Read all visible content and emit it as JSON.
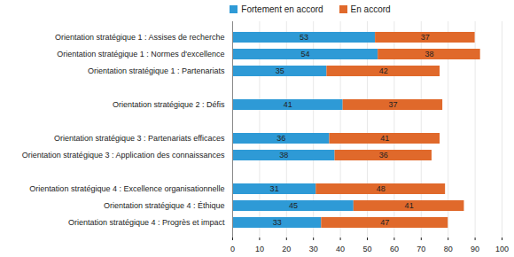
{
  "chart_data": {
    "type": "bar",
    "orientation": "horizontal",
    "stacked": true,
    "data_labels": true,
    "grid": true,
    "legend": "top",
    "categories": [
      "Orientation stratégique 1 : Assises de recherche",
      "Orientation stratégique 1 : Normes d'excellence",
      "Orientation stratégique 1 : Partenariats",
      null,
      "Orientation stratégique 2 : Défis",
      null,
      "Orientation stratégique 3 : Partenariats efficaces",
      "Orientation stratégique 3 : Application des connaissances",
      null,
      "Orientation stratégique 4 : Excellence organisationnelle",
      "Orientation stratégique 4 : Éthique",
      "Orientation stratégique 4 : Progrès et impact"
    ],
    "series": [
      {
        "name": "Fortement en accord",
        "color": "#2e9ad6",
        "values": [
          53,
          54,
          35,
          null,
          41,
          null,
          36,
          38,
          null,
          31,
          45,
          33
        ]
      },
      {
        "name": "En accord",
        "color": "#e0692b",
        "values": [
          37,
          38,
          42,
          null,
          37,
          null,
          41,
          36,
          null,
          48,
          41,
          47
        ]
      }
    ],
    "xlim": [
      0,
      100
    ],
    "xticks": [
      0,
      10,
      20,
      30,
      40,
      50,
      60,
      70,
      80,
      90,
      100
    ]
  }
}
